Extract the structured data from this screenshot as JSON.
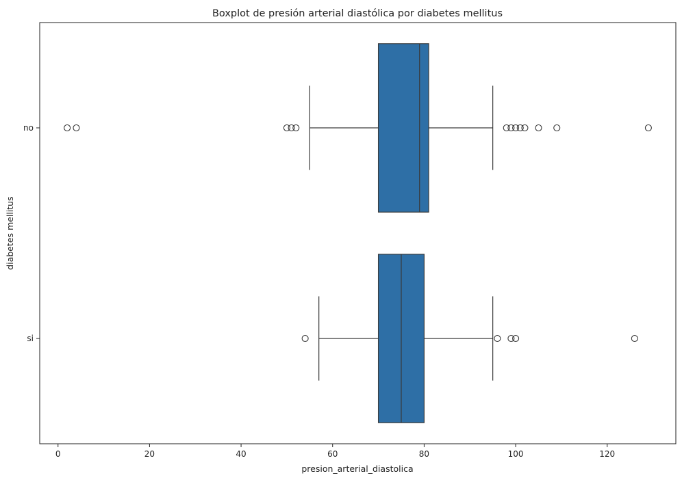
{
  "chart_data": {
    "type": "boxplot",
    "orientation": "horizontal",
    "title": "Boxplot de presión arterial diastólica por diabetes mellitus",
    "xlabel": "presion_arterial_diastolica",
    "ylabel": "diabetes mellitus",
    "xlim": [
      -4,
      135
    ],
    "xticks": [
      0,
      20,
      40,
      60,
      80,
      100,
      120
    ],
    "grid": false,
    "box_color": "#2e6fa6",
    "line_color": "#3a3a3a",
    "categories": [
      "no",
      "si"
    ],
    "boxes": [
      {
        "category": "no",
        "whisker_low": 55,
        "q1": 70,
        "median": 79,
        "q3": 81,
        "whisker_high": 95,
        "outliers": [
          2,
          4,
          50,
          51,
          52,
          98,
          99,
          100,
          101,
          102,
          105,
          109,
          129
        ]
      },
      {
        "category": "si",
        "whisker_low": 57,
        "q1": 70,
        "median": 75,
        "q3": 80,
        "whisker_high": 95,
        "outliers": [
          54,
          96,
          99,
          100,
          126
        ]
      }
    ]
  }
}
